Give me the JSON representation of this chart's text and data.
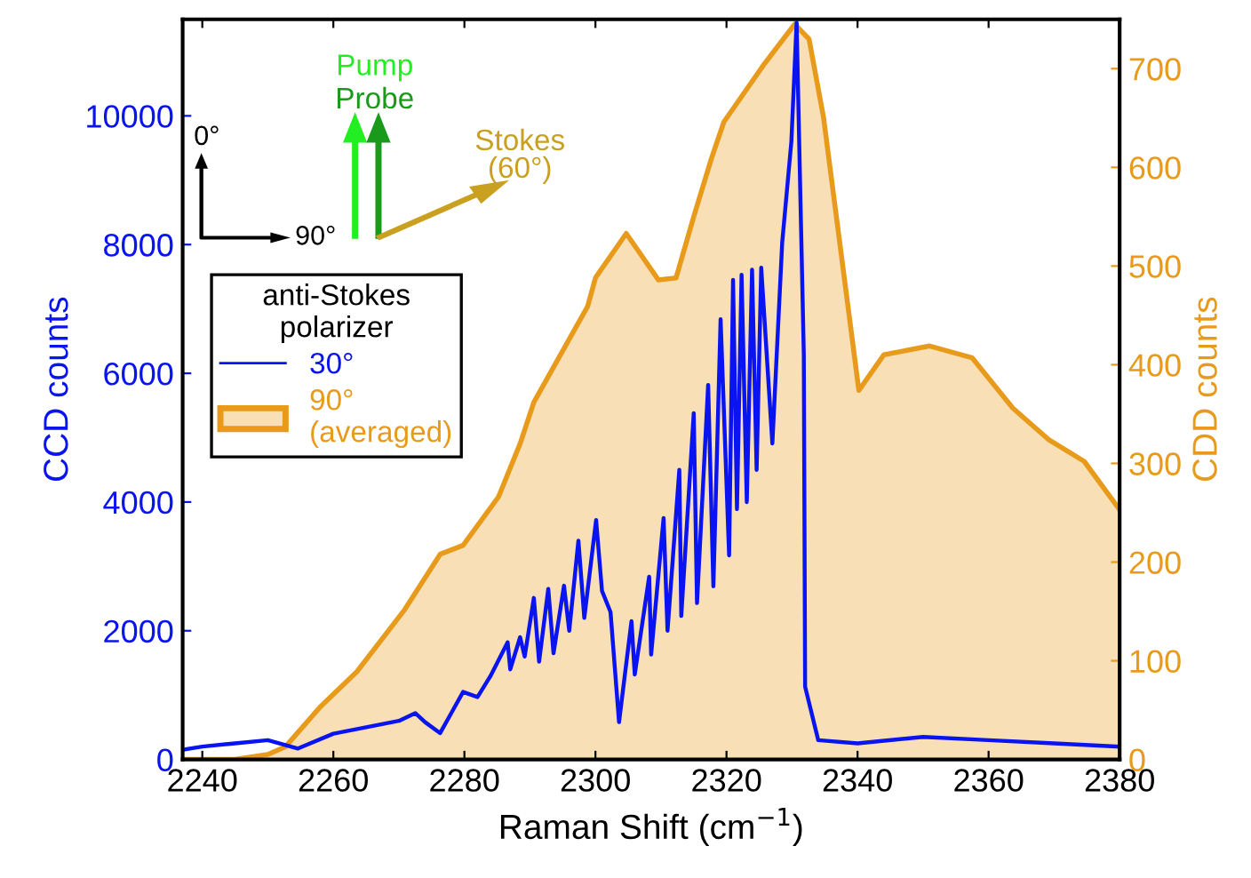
{
  "chart_data": {
    "type": "line",
    "xlabel": "Raman Shift (cm$^{−1}$)",
    "ylabel": "CCD counts",
    "y2label": "CDD counts",
    "legend_title": "anti-Stokes\npolarizer",
    "legend": "left",
    "annotations": [
      "Pump",
      "Probe",
      "Stokes\n(60°)",
      "0°",
      "90°"
    ],
    "xlim": [
      2237,
      2380
    ],
    "xticks": [
      2240,
      2260,
      2280,
      2300,
      2320,
      2340,
      2360,
      2380
    ],
    "ylim": [
      0,
      11500
    ],
    "yticks": [
      0,
      2000,
      4000,
      6000,
      8000,
      10000
    ],
    "y2lim": [
      0,
      750
    ],
    "y2ticks": [
      0,
      100,
      200,
      300,
      400,
      500,
      600,
      700
    ],
    "grid": false,
    "series": [
      {
        "name": "90°\n(averaged)",
        "type": "area",
        "axis": "y2",
        "color": "#e89a1a",
        "x": [
          2237,
          2245,
          2250,
          2252.7,
          2258.1,
          2263.6,
          2270.9,
          2276.3,
          2279.8,
          2285.2,
          2288.5,
          2290.6,
          2298.8,
          2300,
          2304.7,
          2309.6,
          2312.3,
          2315,
          2317.7,
          2319.6,
          2325.8,
          2330.4,
          2332.6,
          2334.8,
          2340.2,
          2344,
          2351,
          2357.5,
          2363.7,
          2369.2,
          2374.6,
          2380
        ],
        "values": [
          0,
          0,
          5,
          13,
          54,
          89,
          152,
          208,
          217,
          266,
          320,
          362,
          459,
          488,
          533,
          486,
          488,
          550,
          609,
          646,
          705,
          745,
          730,
          651,
          374,
          410,
          419,
          407,
          356,
          324,
          302,
          253
        ]
      },
      {
        "name": "30°",
        "color": "#0a14f0",
        "x": [
          2237,
          2240,
          2245,
          2250,
          2254.6,
          2260,
          2265,
          2270,
          2272.5,
          2274,
          2276.3,
          2279.8,
          2282,
          2284,
          2286.6,
          2287,
          2288.5,
          2289.2,
          2290.6,
          2291.4,
          2292.8,
          2293.6,
          2295.2,
          2296,
          2297.4,
          2298.3,
          2300.1,
          2301,
          2302.3,
          2303.6,
          2305.5,
          2306,
          2308.2,
          2308.5,
          2310.4,
          2311,
          2312.8,
          2313.1,
          2315,
          2315.5,
          2317.2,
          2318,
          2319.1,
          2320.4,
          2321,
          2321.6,
          2322.3,
          2323.1,
          2323.9,
          2324.6,
          2325.3,
          2327,
          2328.5,
          2329.9,
          2330.7,
          2331.8,
          2332,
          2334,
          2340,
          2350,
          2360,
          2370,
          2380
        ],
        "values": [
          150,
          200,
          250,
          300,
          170,
          400,
          500,
          600,
          720,
          580,
          410,
          1050,
          970,
          1300,
          1820,
          1400,
          1900,
          1600,
          2510,
          1520,
          2650,
          1650,
          2700,
          2000,
          3400,
          2200,
          3720,
          2620,
          2290,
          580,
          2150,
          1320,
          2840,
          1630,
          3750,
          2000,
          4500,
          2230,
          5380,
          2430,
          5820,
          2690,
          6840,
          3170,
          7450,
          3890,
          7530,
          4000,
          7610,
          4500,
          7640,
          4910,
          8030,
          9600,
          11450,
          6290,
          1130,
          300,
          250,
          350,
          300,
          250,
          200
        ]
      }
    ]
  }
}
